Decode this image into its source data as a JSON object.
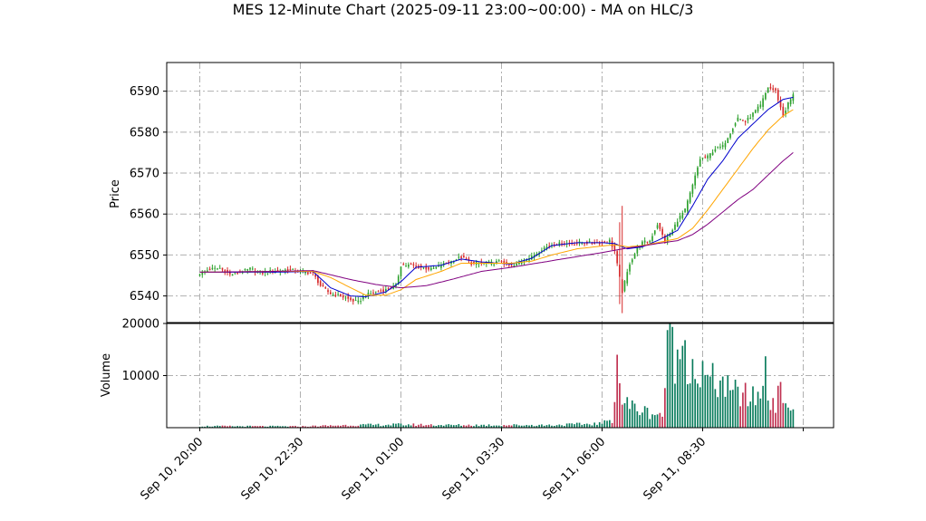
{
  "chart_data": {
    "type": "candlestick",
    "title": "MES 12-Minute Chart (2025-09-11 23:00~00:00) - MA on HLC/3",
    "price_panel": {
      "ylabel": "Price",
      "ylim": [
        6533.5,
        6597
      ],
      "yticks": [
        6540,
        6550,
        6560,
        6570,
        6580,
        6590
      ],
      "grid": true,
      "up_color": "#2ca02c",
      "down_color": "#d62728",
      "close_anchors": [
        [
          0,
          6545.5
        ],
        [
          4,
          6546.5
        ],
        [
          8,
          6546.8
        ],
        [
          12,
          6545.2
        ],
        [
          16,
          6545.8
        ],
        [
          20,
          6546.6
        ],
        [
          25,
          6545.6
        ],
        [
          30,
          6546.2
        ],
        [
          35,
          6546.4
        ],
        [
          40,
          6546.0
        ],
        [
          45,
          6545.5
        ],
        [
          48,
          6542.5
        ],
        [
          52,
          6540.5
        ],
        [
          56,
          6540.0
        ],
        [
          60,
          6539.0
        ],
        [
          63,
          6538.5
        ],
        [
          66,
          6540.2
        ],
        [
          70,
          6541.0
        ],
        [
          74,
          6541.5
        ],
        [
          78,
          6542.5
        ],
        [
          80,
          6547.5
        ],
        [
          84,
          6547.5
        ],
        [
          88,
          6547.0
        ],
        [
          92,
          6546.5
        ],
        [
          96,
          6547.5
        ],
        [
          100,
          6548.5
        ],
        [
          104,
          6549.5
        ],
        [
          108,
          6548.0
        ],
        [
          112,
          6548.0
        ],
        [
          116,
          6548.0
        ],
        [
          120,
          6548.5
        ],
        [
          124,
          6547.0
        ],
        [
          128,
          6548.5
        ],
        [
          132,
          6549.5
        ],
        [
          136,
          6551.5
        ],
        [
          140,
          6552.5
        ],
        [
          144,
          6552.8
        ],
        [
          148,
          6552.8
        ],
        [
          152,
          6553.0
        ],
        [
          156,
          6553.0
        ],
        [
          160,
          6553.0
        ],
        [
          163,
          6553.5
        ],
        [
          165,
          6551.0
        ],
        [
          168,
          6541.0
        ],
        [
          171,
          6548.0
        ],
        [
          174,
          6551.5
        ],
        [
          176,
          6553.0
        ],
        [
          179,
          6553.5
        ],
        [
          182,
          6557.5
        ],
        [
          185,
          6553.5
        ],
        [
          188,
          6556.0
        ],
        [
          190,
          6558.5
        ],
        [
          193,
          6561.0
        ],
        [
          196,
          6567.0
        ],
        [
          199,
          6573.5
        ],
        [
          202,
          6574.0
        ],
        [
          205,
          6576.0
        ],
        [
          208,
          6576.5
        ],
        [
          211,
          6580.0
        ],
        [
          214,
          6583.5
        ],
        [
          217,
          6582.5
        ],
        [
          220,
          6584.5
        ],
        [
          223,
          6586.5
        ],
        [
          226,
          6591.0
        ],
        [
          229,
          6590.0
        ],
        [
          232,
          6584.0
        ],
        [
          234,
          6587.0
        ],
        [
          236,
          6589.0
        ]
      ],
      "moving_averages": [
        {
          "color": "#0000cc",
          "anchors": [
            [
              0,
              6545.8
            ],
            [
              30,
              6545.8
            ],
            [
              45,
              6546.0
            ],
            [
              52,
              6542.0
            ],
            [
              60,
              6540.0
            ],
            [
              66,
              6539.8
            ],
            [
              74,
              6541.0
            ],
            [
              80,
              6543.5
            ],
            [
              86,
              6547.0
            ],
            [
              96,
              6547.5
            ],
            [
              104,
              6549.0
            ],
            [
              112,
              6548.3
            ],
            [
              124,
              6547.8
            ],
            [
              132,
              6549.2
            ],
            [
              140,
              6552.3
            ],
            [
              150,
              6553.0
            ],
            [
              160,
              6553.0
            ],
            [
              165,
              6552.8
            ],
            [
              170,
              6551.5
            ],
            [
              176,
              6552.0
            ],
            [
              182,
              6553.5
            ],
            [
              190,
              6556.0
            ],
            [
              196,
              6562.0
            ],
            [
              202,
              6568.5
            ],
            [
              208,
              6573.0
            ],
            [
              214,
              6578.5
            ],
            [
              220,
              6582.0
            ],
            [
              226,
              6585.5
            ],
            [
              232,
              6588.0
            ],
            [
              236,
              6588.5
            ]
          ]
        },
        {
          "color": "#ffa500",
          "anchors": [
            [
              0,
              6545.8
            ],
            [
              30,
              6546.0
            ],
            [
              45,
              6546.0
            ],
            [
              52,
              6544.5
            ],
            [
              60,
              6542.0
            ],
            [
              66,
              6540.2
            ],
            [
              74,
              6540.2
            ],
            [
              80,
              6541.5
            ],
            [
              86,
              6544.0
            ],
            [
              96,
              6546.0
            ],
            [
              104,
              6548.0
            ],
            [
              112,
              6548.0
            ],
            [
              124,
              6548.0
            ],
            [
              132,
              6548.5
            ],
            [
              140,
              6550.0
            ],
            [
              150,
              6551.5
            ],
            [
              160,
              6552.2
            ],
            [
              165,
              6552.5
            ],
            [
              170,
              6552.0
            ],
            [
              176,
              6552.3
            ],
            [
              182,
              6553.0
            ],
            [
              190,
              6554.0
            ],
            [
              196,
              6556.5
            ],
            [
              202,
              6561.0
            ],
            [
              208,
              6566.0
            ],
            [
              214,
              6571.0
            ],
            [
              220,
              6576.0
            ],
            [
              226,
              6580.5
            ],
            [
              232,
              6584.0
            ],
            [
              236,
              6585.5
            ]
          ]
        },
        {
          "color": "#800080",
          "anchors": [
            [
              0,
              6545.8
            ],
            [
              30,
              6546.0
            ],
            [
              45,
              6546.2
            ],
            [
              60,
              6544.0
            ],
            [
              70,
              6542.8
            ],
            [
              80,
              6542.0
            ],
            [
              90,
              6542.5
            ],
            [
              100,
              6544.0
            ],
            [
              112,
              6546.0
            ],
            [
              124,
              6547.0
            ],
            [
              132,
              6547.8
            ],
            [
              140,
              6548.6
            ],
            [
              150,
              6549.6
            ],
            [
              160,
              6550.6
            ],
            [
              170,
              6551.7
            ],
            [
              176,
              6552.2
            ],
            [
              182,
              6552.8
            ],
            [
              190,
              6553.5
            ],
            [
              196,
              6555.0
            ],
            [
              202,
              6557.5
            ],
            [
              208,
              6560.5
            ],
            [
              214,
              6563.5
            ],
            [
              220,
              6566.0
            ],
            [
              226,
              6569.5
            ],
            [
              232,
              6573.0
            ],
            [
              236,
              6575.0
            ]
          ]
        }
      ]
    },
    "volume_panel": {
      "ylabel": "Volume",
      "ylim": [
        0,
        20000
      ],
      "yticks": [
        10000,
        20000
      ],
      "grid": true,
      "anchors": [
        [
          0,
          300
        ],
        [
          40,
          250
        ],
        [
          60,
          500
        ],
        [
          80,
          600
        ],
        [
          100,
          500
        ],
        [
          120,
          500
        ],
        [
          140,
          500
        ],
        [
          160,
          800
        ],
        [
          164,
          1600
        ],
        [
          166,
          14000
        ],
        [
          168,
          5000
        ],
        [
          172,
          4000
        ],
        [
          178,
          3000
        ],
        [
          184,
          2500
        ],
        [
          187,
          20000
        ],
        [
          190,
          13000
        ],
        [
          193,
          16500
        ],
        [
          196,
          12000
        ],
        [
          199,
          10000
        ],
        [
          202,
          9000
        ],
        [
          205,
          8500
        ],
        [
          208,
          9000
        ],
        [
          211,
          6000
        ],
        [
          214,
          7000
        ],
        [
          217,
          6000
        ],
        [
          220,
          5500
        ],
        [
          223,
          7000
        ],
        [
          226,
          6000
        ],
        [
          229,
          5000
        ],
        [
          232,
          7000
        ],
        [
          236,
          2500
        ]
      ],
      "spikes": [
        [
          166,
          14000
        ],
        [
          187,
          20000
        ],
        [
          190,
          15000
        ],
        [
          193,
          16800
        ],
        [
          225,
          13700
        ]
      ]
    },
    "x_axis": {
      "bars": 237,
      "tick_bars": [
        0,
        40,
        80,
        120,
        160,
        200,
        240
      ],
      "tick_labels": [
        "Sep 10, 20:00",
        "Sep 10, 22:30",
        "Sep 11, 01:00",
        "Sep 11, 03:30",
        "Sep 11, 06:00",
        "Sep 11, 08:30",
        ""
      ]
    }
  }
}
